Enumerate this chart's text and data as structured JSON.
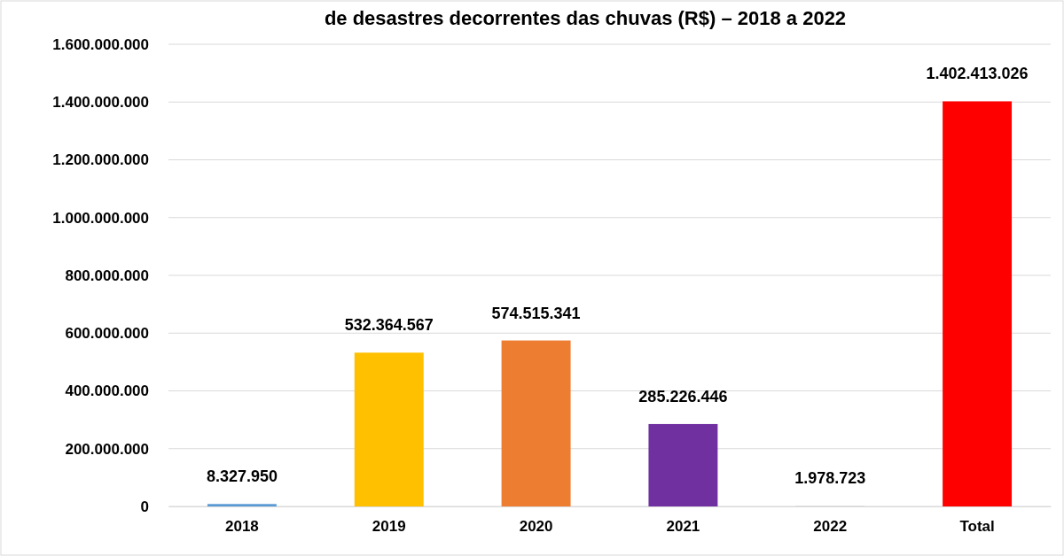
{
  "chart_data": {
    "type": "bar",
    "title": "de desastres decorrentes das chuvas (R$) – 2018 a 2022",
    "categories": [
      "2018",
      "2019",
      "2020",
      "2021",
      "2022",
      "Total"
    ],
    "values": [
      8327950,
      532364567,
      574515341,
      285226446,
      1978723,
      1402413026
    ],
    "colors": [
      "#5b9bd5",
      "#ffc000",
      "#ed7d31",
      "#7030a0",
      "#d9d9d9",
      "#ff0000"
    ],
    "value_labels": [
      "8.327.950",
      "532.364.567",
      "574.515.341",
      "285.226.446",
      "1.978.723",
      "1.402.413.026"
    ],
    "ylim": [
      0,
      1600000000
    ],
    "yticks": [
      0,
      {
        "value": 200000000,
        "label": "200.000.000"
      },
      {
        "value": 400000000,
        "label": "400.000.000"
      },
      {
        "value": 600000000,
        "label": "600.000.000"
      },
      {
        "value": 800000000,
        "label": "800.000.000"
      },
      {
        "value": 1000000000,
        "label": "1.000.000.000"
      },
      {
        "value": 1200000000,
        "label": "1.200.000.000"
      },
      {
        "value": 1400000000,
        "label": "1.400.000.000"
      },
      {
        "value": 1600000000,
        "label": "1.600.000.000"
      }
    ],
    "grid": "y"
  }
}
